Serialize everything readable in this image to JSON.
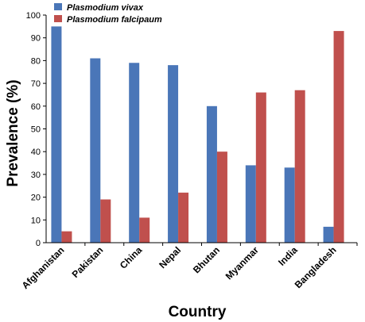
{
  "chart_data": {
    "type": "bar",
    "title": "",
    "xlabel": "Country",
    "ylabel": "Prevalence (%)",
    "ylim": [
      0,
      100
    ],
    "yticks": [
      0,
      10,
      20,
      30,
      40,
      50,
      60,
      70,
      80,
      90,
      100
    ],
    "grid": false,
    "legend": "top-left",
    "categories": [
      "Afghanistan",
      "Pakistan",
      "China",
      "Nepal",
      "Bhutan",
      "Myanmar",
      "India",
      "Bangladesh"
    ],
    "series": [
      {
        "name": "Plasmodium vivax",
        "color": "#4a76b8",
        "values": [
          95,
          81,
          79,
          78,
          60,
          34,
          33,
          7
        ]
      },
      {
        "name": "Plasmodium falcipaum",
        "color": "#c0504d",
        "values": [
          5,
          19,
          11,
          22,
          40,
          66,
          67,
          93
        ]
      }
    ]
  }
}
